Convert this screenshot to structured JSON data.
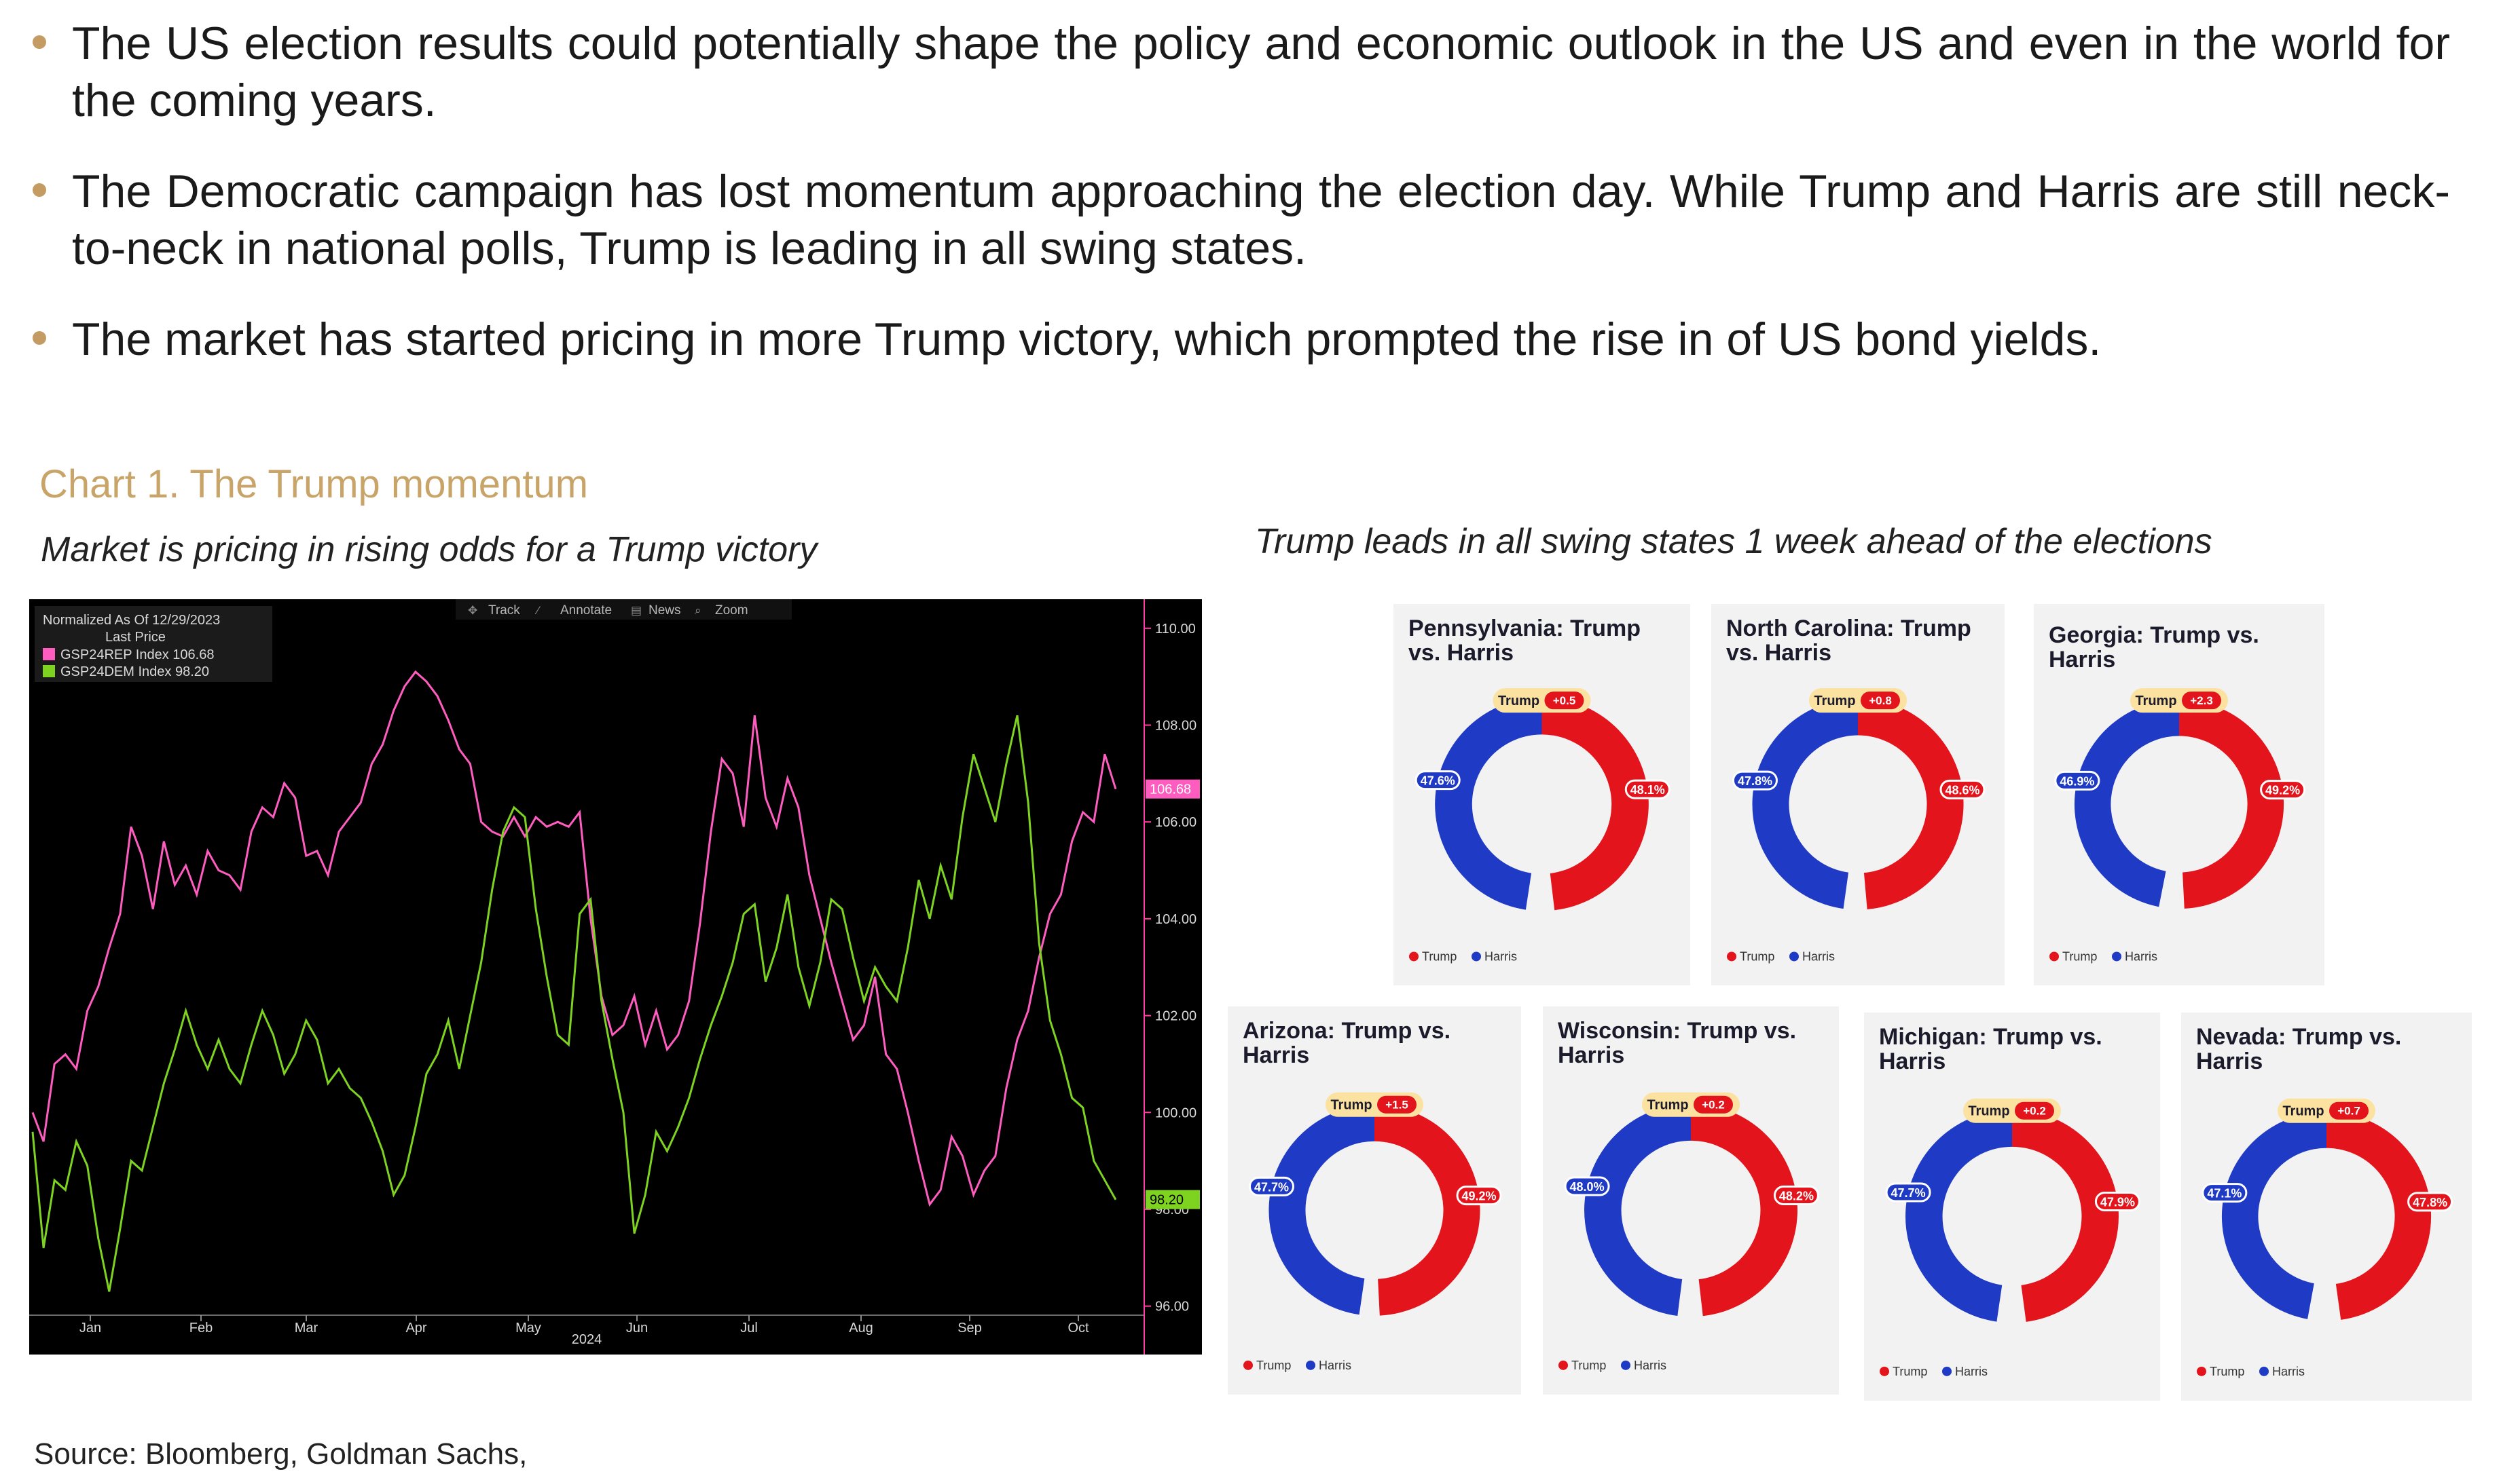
{
  "bullets": [
    "The US election results could potentially shape the policy and economic outlook in the US and even in the world for the coming years.",
    "The Democratic campaign has lost momentum approaching the election day. While Trump and Harris are still neck-to-neck in national polls, Trump is leading in all swing states.",
    "The market has started pricing in more Trump victory, which prompted the rise in of US bond yields."
  ],
  "chart_title": "Chart 1. The Trump momentum",
  "left_subtitle": "Market is pricing in rising odds for a Trump victory",
  "right_subtitle": "Trump leads in all swing states 1 week ahead of the elections",
  "source": "Source: Bloomberg, Goldman Sachs,",
  "colors": {
    "accent": "#c9a469",
    "trump": "#e3141c",
    "harris": "#1f3ac4",
    "rep_line": "#ff5cc0",
    "dem_line": "#7ed321"
  },
  "chart_data": [
    {
      "type": "line",
      "legend": {
        "header": "Normalized As Of 12/29/2023",
        "subheader": "Last Price",
        "rep_label": "GSP24REP Index 106.68",
        "dem_label": "GSP24DEM Index 98.20"
      },
      "toolbar": [
        "Track",
        "Annotate",
        "News",
        "Zoom"
      ],
      "x_ticks": [
        "Jan",
        "Feb",
        "Mar",
        "Apr",
        "May",
        "Jun",
        "Jul",
        "Aug",
        "Sep",
        "Oct"
      ],
      "year_label": "2024",
      "y_ticks": [
        "110.00",
        "108.00",
        "106.00",
        "104.00",
        "102.00",
        "100.00",
        "98.00",
        "96.00"
      ],
      "ylim": [
        95,
        110.6
      ],
      "series": [
        {
          "name": "GSP24REP Index",
          "last": "106.68",
          "values": [
            100,
            99.4,
            101,
            101.2,
            100.9,
            102.1,
            102.6,
            103.4,
            104.1,
            105.9,
            105.3,
            104.2,
            105.6,
            104.7,
            105.1,
            104.5,
            105.4,
            105.0,
            104.9,
            104.6,
            105.8,
            106.3,
            106.1,
            106.8,
            106.5,
            105.3,
            105.4,
            104.9,
            105.8,
            106.1,
            106.4,
            107.2,
            107.6,
            108.3,
            108.8,
            109.1,
            108.9,
            108.6,
            108.1,
            107.5,
            107.2,
            106.0,
            105.8,
            105.7,
            106.1,
            105.7,
            106.1,
            105.9,
            106.0,
            105.9,
            106.2,
            104.0,
            102.4,
            101.6,
            101.8,
            102.4,
            101.4,
            102.1,
            101.3,
            101.6,
            102.3,
            103.9,
            105.8,
            107.3,
            107.0,
            105.9,
            108.2,
            106.5,
            105.9,
            106.9,
            106.3,
            104.9,
            104.0,
            103.1,
            102.3,
            101.5,
            101.8,
            102.8,
            101.2,
            100.9,
            100.0,
            99.0,
            98.1,
            98.4,
            99.5,
            99.1,
            98.3,
            98.8,
            99.1,
            100.5,
            101.5,
            102.1,
            103.2,
            104.1,
            104.5,
            105.6,
            106.2,
            106.0,
            107.4,
            106.68
          ]
        },
        {
          "name": "GSP24DEM Index",
          "last": "98.20",
          "values": [
            99.6,
            97.2,
            98.6,
            98.4,
            99.4,
            98.9,
            97.4,
            96.3,
            97.6,
            99.0,
            98.8,
            99.7,
            100.6,
            101.3,
            102.1,
            101.4,
            100.9,
            101.5,
            100.9,
            100.6,
            101.4,
            102.1,
            101.6,
            100.8,
            101.2,
            101.9,
            101.5,
            100.6,
            100.9,
            100.5,
            100.3,
            99.8,
            99.2,
            98.3,
            98.7,
            99.7,
            100.8,
            101.2,
            101.9,
            100.9,
            102.0,
            103.1,
            104.6,
            105.8,
            106.3,
            106.1,
            104.2,
            102.8,
            101.6,
            101.4,
            104.1,
            104.4,
            102.3,
            101.1,
            100.0,
            97.5,
            98.3,
            99.6,
            99.2,
            99.7,
            100.3,
            101.1,
            101.8,
            102.4,
            103.1,
            104.1,
            104.3,
            102.7,
            103.4,
            104.5,
            103.0,
            102.2,
            103.1,
            104.4,
            104.2,
            103.2,
            102.3,
            103.0,
            102.6,
            102.3,
            103.4,
            104.8,
            104.0,
            105.1,
            104.4,
            106.1,
            107.4,
            106.7,
            106.0,
            107.2,
            108.2,
            106.4,
            103.5,
            101.9,
            101.2,
            100.3,
            100.1,
            99.0,
            98.6,
            98.2
          ]
        }
      ]
    },
    {
      "type": "pie",
      "subtitle": "Trump leads in all swing states 1 week ahead of the elections",
      "legend": [
        "Trump",
        "Harris"
      ],
      "states": [
        {
          "title": "Pennsylvania: Trump vs. Harris",
          "badge_name": "Trump",
          "badge_value": "+0.5",
          "trump": 48.1,
          "harris": 47.6,
          "trump_label": "48.1%",
          "harris_label": "47.6%"
        },
        {
          "title": "North Carolina: Trump vs. Harris",
          "badge_name": "Trump",
          "badge_value": "+0.8",
          "trump": 48.6,
          "harris": 47.8,
          "trump_label": "48.6%",
          "harris_label": "47.8%"
        },
        {
          "title": "Georgia: Trump vs. Harris",
          "badge_name": "Trump",
          "badge_value": "+2.3",
          "trump": 49.2,
          "harris": 46.9,
          "trump_label": "49.2%",
          "harris_label": "46.9%"
        },
        {
          "title": "Arizona: Trump vs. Harris",
          "badge_name": "Trump",
          "badge_value": "+1.5",
          "trump": 49.2,
          "harris": 47.7,
          "trump_label": "49.2%",
          "harris_label": "47.7%"
        },
        {
          "title": "Wisconsin: Trump vs. Harris",
          "badge_name": "Trump",
          "badge_value": "+0.2",
          "trump": 48.2,
          "harris": 48.0,
          "trump_label": "48.2%",
          "harris_label": "48.0%"
        },
        {
          "title": "Michigan: Trump vs. Harris",
          "badge_name": "Trump",
          "badge_value": "+0.2",
          "trump": 47.9,
          "harris": 47.7,
          "trump_label": "47.9%",
          "harris_label": "47.7%"
        },
        {
          "title": "Nevada: Trump vs. Harris",
          "badge_name": "Trump",
          "badge_value": "+0.7",
          "trump": 47.8,
          "harris": 47.1,
          "trump_label": "47.8%",
          "harris_label": "47.1%"
        }
      ]
    }
  ]
}
